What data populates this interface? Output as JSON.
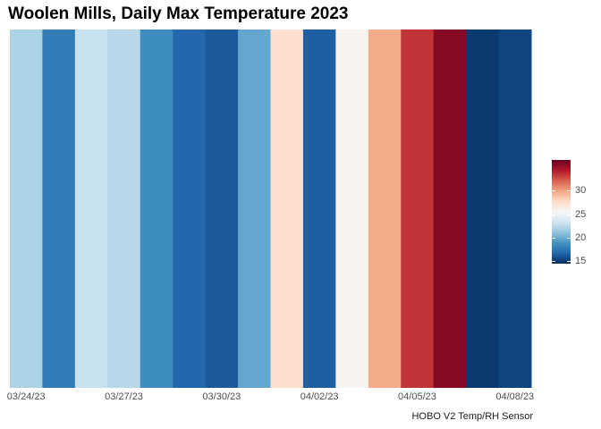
{
  "title": "Woolen Mills, Daily Max Temperature 2023",
  "caption": "HOBO V2 Temp/RH Sensor",
  "chart_data": {
    "type": "heatmap",
    "title": "Woolen Mills, Daily Max Temperature 2023",
    "xlabel": "",
    "ylabel": "",
    "grid": false,
    "legend_position": "right",
    "x_ticks": [
      "03/24/23",
      "03/27/23",
      "03/30/23",
      "04/02/23",
      "04/05/23",
      "04/08/23"
    ],
    "dates": [
      "03/24/23",
      "03/25/23",
      "03/26/23",
      "03/27/23",
      "03/28/23",
      "03/29/23",
      "03/30/23",
      "03/31/23",
      "04/01/23",
      "04/02/23",
      "04/03/23",
      "04/04/23",
      "04/05/23",
      "04/06/23",
      "04/07/23",
      "04/08/23"
    ],
    "values": [
      22.0,
      17.8,
      23.0,
      22.4,
      18.6,
      16.8,
      16.2,
      19.8,
      27.4,
      16.4,
      25.8,
      29.6,
      33.4,
      35.6,
      14.9,
      15.4
    ],
    "color_scale": {
      "min": 14.5,
      "max": 36.5,
      "stops": [
        "#053061",
        "#2166ac",
        "#4393c3",
        "#92c5de",
        "#d1e5f0",
        "#f7f7f7",
        "#fddbc7",
        "#f4a582",
        "#d6604d",
        "#b2182b",
        "#67001f"
      ],
      "legend_ticks": [
        15,
        20,
        25,
        30
      ]
    }
  }
}
